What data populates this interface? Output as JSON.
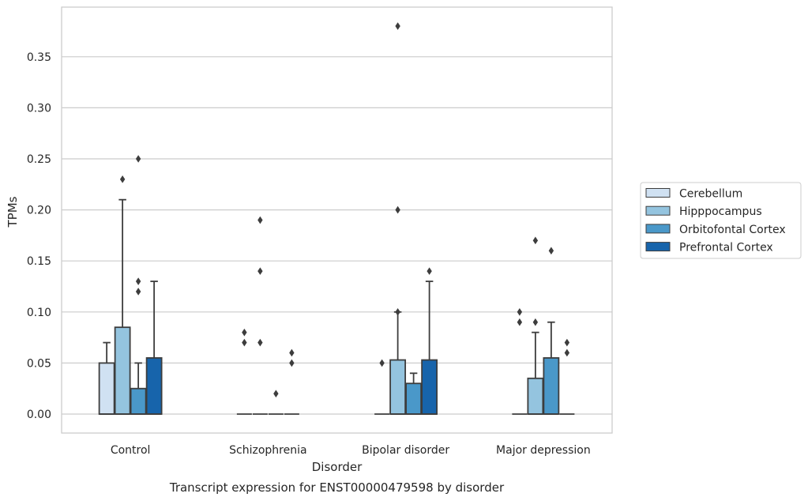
{
  "chart_data": {
    "type": "box",
    "caption": "Transcript expression for ENST00000479598 by disorder",
    "xlabel": "Disorder",
    "ylabel": "TPMs",
    "ylim": [
      -0.018,
      0.398
    ],
    "yticks": [
      0.0,
      0.05,
      0.1,
      0.15,
      0.2,
      0.25,
      0.3,
      0.35
    ],
    "ytick_labels": [
      "0.00",
      "0.05",
      "0.10",
      "0.15",
      "0.20",
      "0.25",
      "0.30",
      "0.35"
    ],
    "grid": "horizontal",
    "legend_position": "right",
    "categories": [
      "Control",
      "Schizophrenia",
      "Bipolar disorder",
      "Major depression"
    ],
    "series": [
      {
        "name": "Cerebellum",
        "color": "#d0e1f2",
        "boxes": [
          {
            "q1": 0.0,
            "median": 0.0,
            "q3": 0.05,
            "whisker_low": 0.0,
            "whisker_high": 0.07,
            "outliers": []
          },
          {
            "q1": 0.0,
            "median": 0.0,
            "q3": 0.0,
            "whisker_low": 0.0,
            "whisker_high": 0.0,
            "outliers": [
              0.08,
              0.07
            ]
          },
          {
            "q1": 0.0,
            "median": 0.0,
            "q3": 0.0,
            "whisker_low": 0.0,
            "whisker_high": 0.0,
            "outliers": [
              0.05
            ]
          },
          {
            "q1": 0.0,
            "median": 0.0,
            "q3": 0.0,
            "whisker_low": 0.0,
            "whisker_high": 0.0,
            "outliers": [
              0.1,
              0.09
            ]
          }
        ]
      },
      {
        "name": "Hipppocampus",
        "color": "#94c4df",
        "boxes": [
          {
            "q1": 0.0,
            "median": 0.0,
            "q3": 0.085,
            "whisker_low": 0.0,
            "whisker_high": 0.21,
            "outliers": [
              0.23
            ]
          },
          {
            "q1": 0.0,
            "median": 0.0,
            "q3": 0.0,
            "whisker_low": 0.0,
            "whisker_high": 0.0,
            "outliers": [
              0.19,
              0.14,
              0.07
            ]
          },
          {
            "q1": 0.0,
            "median": 0.0,
            "q3": 0.053,
            "whisker_low": 0.0,
            "whisker_high": 0.1,
            "outliers": [
              0.38,
              0.2,
              0.1
            ]
          },
          {
            "q1": 0.0,
            "median": 0.0,
            "q3": 0.035,
            "whisker_low": 0.0,
            "whisker_high": 0.08,
            "outliers": [
              0.17,
              0.09
            ]
          }
        ]
      },
      {
        "name": "Orbitofontal Cortex",
        "color": "#4a98c9",
        "boxes": [
          {
            "q1": 0.0,
            "median": 0.0,
            "q3": 0.025,
            "whisker_low": 0.0,
            "whisker_high": 0.05,
            "outliers": [
              0.25,
              0.13,
              0.12
            ]
          },
          {
            "q1": 0.0,
            "median": 0.0,
            "q3": 0.0,
            "whisker_low": 0.0,
            "whisker_high": 0.0,
            "outliers": [
              0.02
            ]
          },
          {
            "q1": 0.0,
            "median": 0.0,
            "q3": 0.03,
            "whisker_low": 0.0,
            "whisker_high": 0.04,
            "outliers": []
          },
          {
            "q1": 0.0,
            "median": 0.0,
            "q3": 0.055,
            "whisker_low": 0.0,
            "whisker_high": 0.09,
            "outliers": [
              0.16
            ]
          }
        ]
      },
      {
        "name": "Prefrontal Cortex",
        "color": "#1764ab",
        "boxes": [
          {
            "q1": 0.0,
            "median": 0.0,
            "q3": 0.055,
            "whisker_low": 0.0,
            "whisker_high": 0.13,
            "outliers": []
          },
          {
            "q1": 0.0,
            "median": 0.0,
            "q3": 0.0,
            "whisker_low": 0.0,
            "whisker_high": 0.0,
            "outliers": [
              0.06,
              0.05
            ]
          },
          {
            "q1": 0.0,
            "median": 0.0,
            "q3": 0.053,
            "whisker_low": 0.0,
            "whisker_high": 0.13,
            "outliers": [
              0.14
            ]
          },
          {
            "q1": 0.0,
            "median": 0.0,
            "q3": 0.0,
            "whisker_low": 0.0,
            "whisker_high": 0.0,
            "outliers": [
              0.07,
              0.06
            ]
          }
        ]
      }
    ]
  }
}
